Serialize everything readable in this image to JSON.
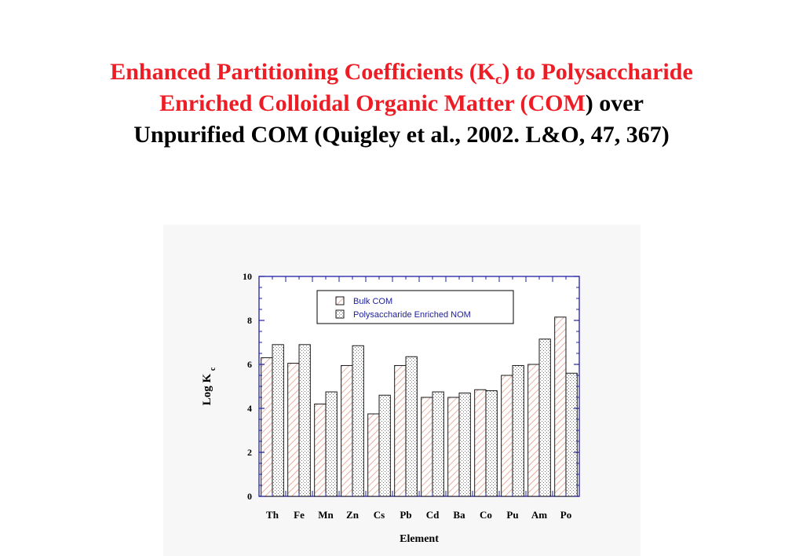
{
  "title": {
    "line1_part1": "Enhanced Partitioning Coefficients (K",
    "line1_sub": "c",
    "line1_part2": ") to Polysaccharide",
    "line2_red": "Enriched Colloidal Organic Matter (COM",
    "line2_black": ") over",
    "line3": "Unpurified COM (Quigley et al., 2002. L&O, 47, 367)",
    "red_color": "#ee1c25"
  },
  "chart_data": {
    "type": "bar",
    "categories": [
      "Th",
      "Fe",
      "Mn",
      "Zn",
      "Cs",
      "Pb",
      "Cd",
      "Ba",
      "Co",
      "Pu",
      "Am",
      "Po"
    ],
    "series": [
      {
        "name": "Bulk COM",
        "pattern": "diagonal-hatch",
        "color": "#e0907a",
        "values": [
          6.3,
          6.05,
          4.2,
          5.95,
          3.75,
          5.95,
          4.5,
          4.5,
          4.85,
          5.5,
          6.0,
          8.15
        ]
      },
      {
        "name": "Polysaccharide Enriched NOM",
        "pattern": "dotted",
        "color": "#808080",
        "values": [
          6.9,
          6.9,
          4.75,
          6.85,
          4.6,
          6.35,
          4.75,
          4.7,
          4.8,
          5.95,
          7.15,
          5.6
        ]
      }
    ],
    "xlabel": "Element",
    "ylabel": "Log K",
    "ylabel_sub": "c",
    "ylim": [
      0,
      10
    ],
    "yticks": [
      0,
      2,
      4,
      6,
      8,
      10
    ],
    "legend_position": "top-right",
    "axis_color": "#1f1fa8",
    "legend_text_color": "#2020a0"
  }
}
